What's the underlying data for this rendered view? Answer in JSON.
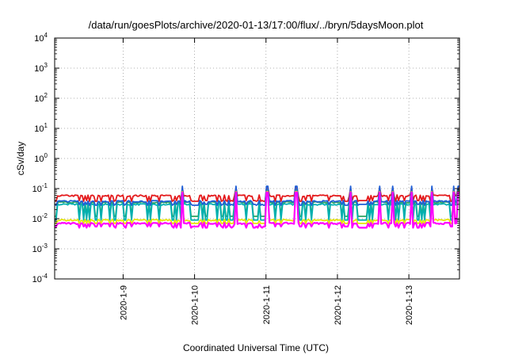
{
  "chart_data": {
    "type": "line",
    "title": "/data/run/goesPlots/archive/2020-01-13/17:00/flux/../bryn/5daysMoon.plot",
    "xlabel": "Coordinated Universal Time (UTC)",
    "ylabel": "cSv/day",
    "yscale": "log",
    "ylim": [
      0.0001,
      10000
    ],
    "xlim": [
      "2020-01-08 01:00",
      "2020-01-13 17:00"
    ],
    "grid": true,
    "legend": "none",
    "y_ticks": [
      {
        "value": 0.0001,
        "base": "10",
        "exp": "-4"
      },
      {
        "value": 0.001,
        "base": "10",
        "exp": "-3"
      },
      {
        "value": 0.01,
        "base": "10",
        "exp": "-2"
      },
      {
        "value": 0.1,
        "base": "10",
        "exp": "-1"
      },
      {
        "value": 1,
        "base": "10",
        "exp": "0"
      },
      {
        "value": 10,
        "base": "10",
        "exp": "1"
      },
      {
        "value": 100,
        "base": "10",
        "exp": "2"
      },
      {
        "value": 1000,
        "base": "10",
        "exp": "3"
      },
      {
        "value": 10000,
        "base": "10",
        "exp": "4"
      }
    ],
    "x_ticks": [
      {
        "date": "2020-01-09",
        "label": "2020-1-9"
      },
      {
        "date": "2020-01-10",
        "label": "2020-1-10"
      },
      {
        "date": "2020-01-11",
        "label": "2020-1-11"
      },
      {
        "date": "2020-01-12",
        "label": "2020-1-12"
      },
      {
        "date": "2020-01-13",
        "label": "2020-1-13"
      }
    ],
    "series": [
      {
        "color": "#e41a1c",
        "baseline": 0.058,
        "dips": 0.04,
        "low": 0.038,
        "spikes": 0.105
      },
      {
        "color": "#2ca25f",
        "baseline": 0.035,
        "dips": 0.012,
        "low": 0.012,
        "spikes": 0.09
      },
      {
        "color": "#00b0b0",
        "baseline": 0.03,
        "dips": 0.009,
        "low": 0.009,
        "spikes": 0.085
      },
      {
        "color": "#1f5fd6",
        "baseline": 0.038,
        "dips": 0.03,
        "low": 0.028,
        "spikes": 0.12
      },
      {
        "color": "#e6e600",
        "baseline": 0.009,
        "dips": 0.007,
        "low": 0.007,
        "spikes": 0.08
      },
      {
        "color": "#ff00ff",
        "baseline": 0.007,
        "dips": 0.005,
        "low": 0.0055,
        "spikes": 0.075
      }
    ]
  }
}
